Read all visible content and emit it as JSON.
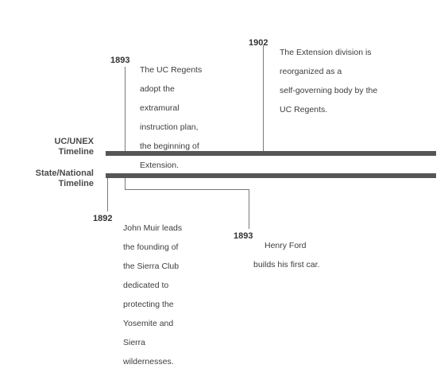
{
  "tracks": {
    "uc_label": [
      "UC/UNEX",
      "Timeline"
    ],
    "state_label": [
      "State/National",
      "Timeline"
    ]
  },
  "events": {
    "uc_1893": {
      "year": "1893",
      "lines": [
        "The UC Regents",
        "adopt the",
        "extramural",
        "instruction plan,",
        "the beginning of",
        "Extension."
      ]
    },
    "uc_1902": {
      "year": "1902",
      "lines": [
        "The Extension division is",
        "reorganized as a",
        "self-governing body by the",
        "UC Regents."
      ]
    },
    "state_1892": {
      "year": "1892",
      "lines": [
        "John Muir leads",
        "the founding of",
        "the Sierra Club",
        "dedicated to",
        "protecting the",
        "Yosemite and",
        "Sierra",
        "wildernesses."
      ]
    },
    "state_1893": {
      "year": "1893",
      "lines": [
        "Henry Ford",
        "builds his first car."
      ]
    }
  },
  "colors": {
    "band": "#555555",
    "connector": "#7a7a7a",
    "text": "#3d3d3d"
  }
}
